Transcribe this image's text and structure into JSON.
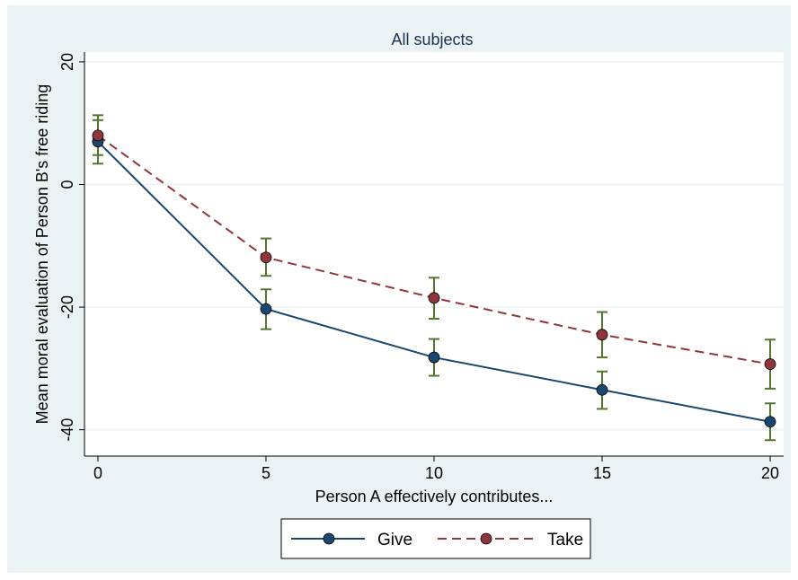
{
  "chart_data": {
    "type": "line",
    "title": "All subjects",
    "xlabel": "Person A effectively contributes...",
    "ylabel": "Mean moral evaluation of Person B's free riding",
    "x": [
      0,
      5,
      10,
      15,
      20
    ],
    "xticks": [
      0,
      5,
      10,
      15,
      20
    ],
    "yticks": [
      20,
      0,
      -20,
      -40
    ],
    "xlim": [
      -0.4,
      20.4
    ],
    "ylim": [
      -44.3,
      21.6
    ],
    "grid": true,
    "legend": "bottom",
    "series": [
      {
        "name": "Give",
        "color": "#1a476f",
        "dash": "solid",
        "values": [
          7.0,
          -20.3,
          -28.2,
          -33.5,
          -38.7
        ],
        "ci_low": [
          3.4,
          -23.6,
          -31.2,
          -36.6,
          -41.7
        ],
        "ci_high": [
          10.5,
          -17.1,
          -25.2,
          -30.5,
          -35.7
        ]
      },
      {
        "name": "Take",
        "color": "#90353b",
        "dash": "dashed",
        "values": [
          8.0,
          -11.9,
          -18.5,
          -24.5,
          -29.3
        ],
        "ci_low": [
          4.8,
          -14.9,
          -21.9,
          -28.2,
          -33.3
        ],
        "ci_high": [
          11.3,
          -8.8,
          -15.2,
          -20.8,
          -25.3
        ]
      }
    ],
    "errorbar_color": "#55752f"
  }
}
